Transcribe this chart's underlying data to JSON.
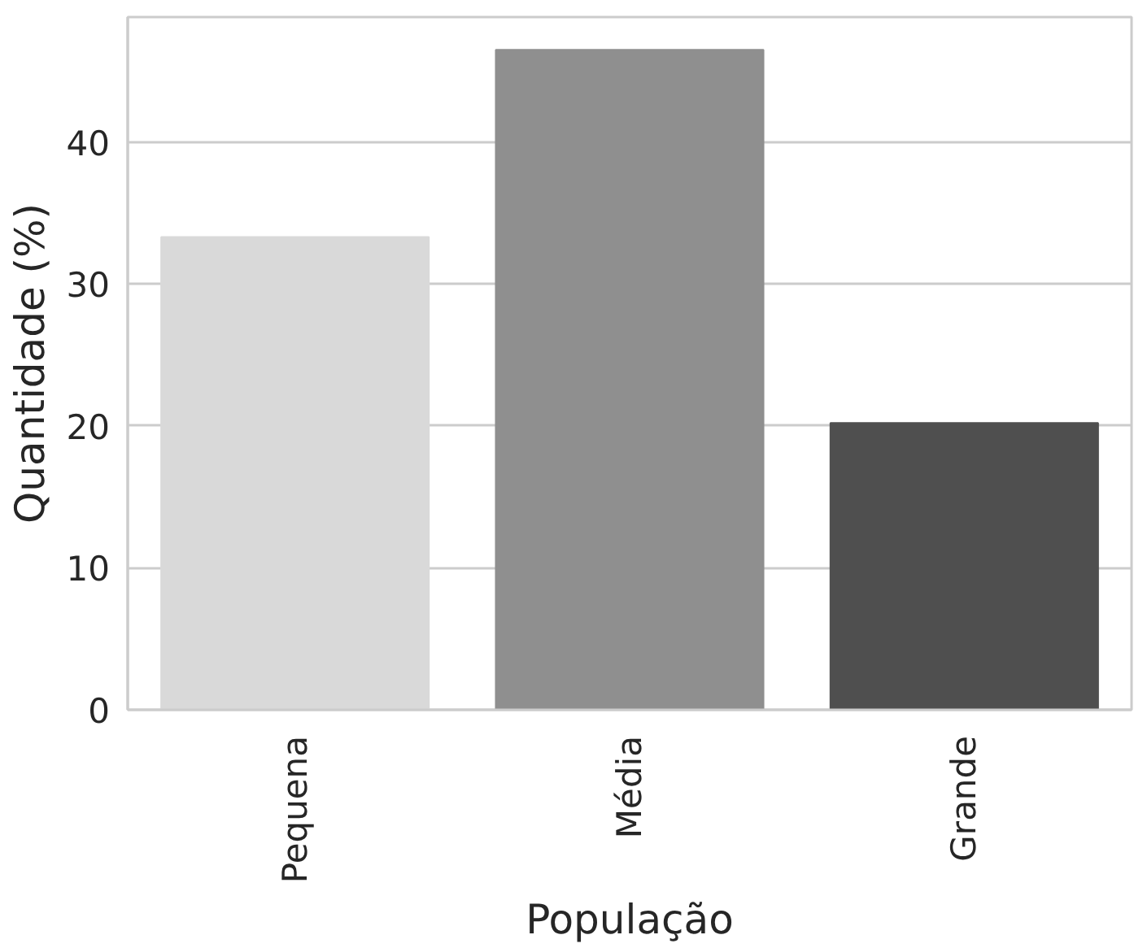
{
  "chart_data": {
    "type": "bar",
    "xlabel": "População",
    "ylabel": "Quantidade (%)",
    "categories": [
      "Pequena",
      "Média",
      "Grande"
    ],
    "values": [
      33.3,
      46.5,
      20.2
    ],
    "colors": [
      "#d9d9d9",
      "#8f8f8f",
      "#4f4f4f"
    ],
    "ylim": [
      0,
      48.8
    ],
    "yticks": [
      0,
      10,
      20,
      30,
      40
    ],
    "grid": "y"
  }
}
